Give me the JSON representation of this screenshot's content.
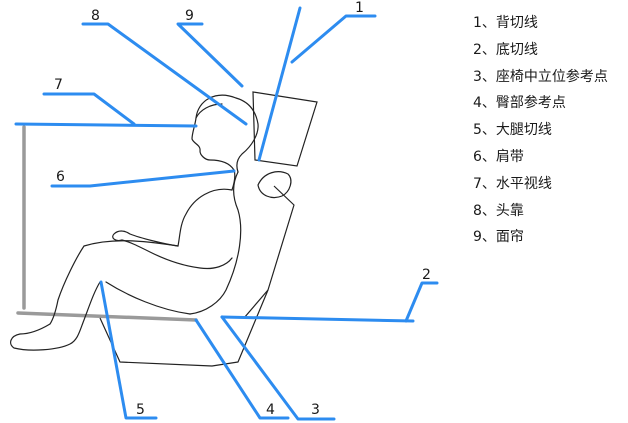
{
  "colors": {
    "leader": "#2d8cf0",
    "outline": "#222222",
    "seat_post": "#9a9a9a"
  },
  "callouts": [
    {
      "num": "1"
    },
    {
      "num": "2"
    },
    {
      "num": "3"
    },
    {
      "num": "4"
    },
    {
      "num": "5"
    },
    {
      "num": "6"
    },
    {
      "num": "7"
    },
    {
      "num": "8"
    },
    {
      "num": "9"
    }
  ],
  "legend": [
    "1、背切线",
    "2、底切线",
    "3、座椅中立位参考点",
    "4、臀部参考点",
    "5、大腿切线",
    "6、肩带",
    "7、水平视线",
    "8、头靠",
    "9、面帘"
  ]
}
